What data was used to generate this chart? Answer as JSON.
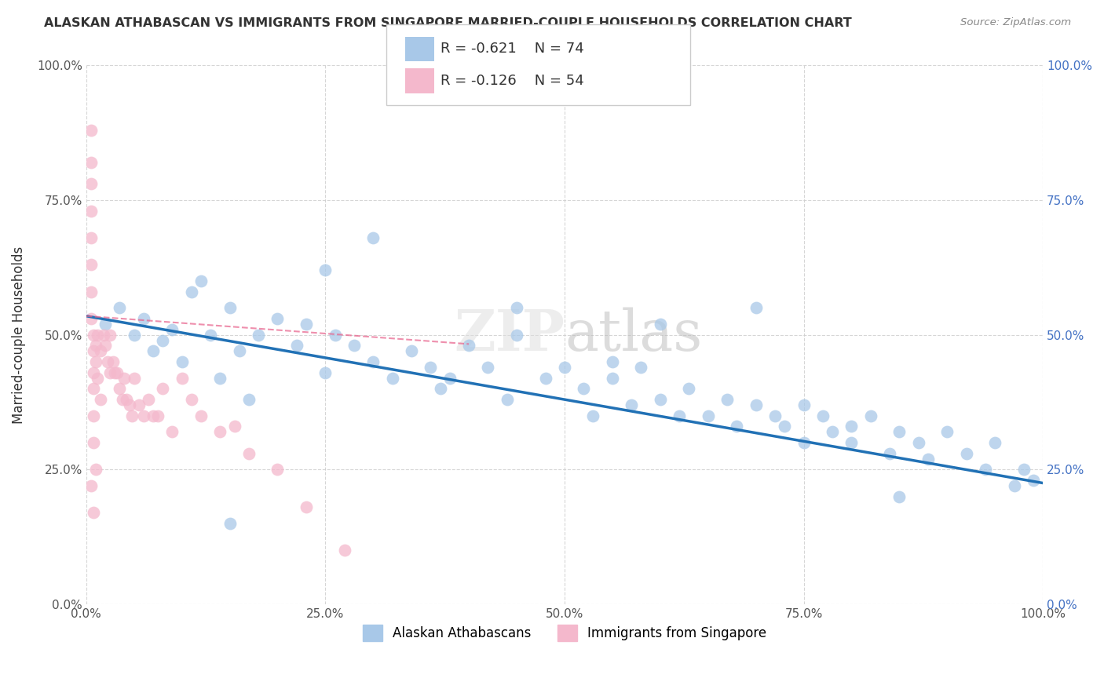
{
  "title": "ALASKAN ATHABASCAN VS IMMIGRANTS FROM SINGAPORE MARRIED-COUPLE HOUSEHOLDS CORRELATION CHART",
  "source": "Source: ZipAtlas.com",
  "ylabel": "Married-couple Households",
  "xlim": [
    0.0,
    1.0
  ],
  "ylim": [
    0.0,
    1.0
  ],
  "xticks": [
    0.0,
    0.25,
    0.5,
    0.75,
    1.0
  ],
  "yticks": [
    0.0,
    0.25,
    0.5,
    0.75,
    1.0
  ],
  "xticklabels": [
    "0.0%",
    "25.0%",
    "50.0%",
    "75.0%",
    "100.0%"
  ],
  "yticklabels": [
    "0.0%",
    "25.0%",
    "50.0%",
    "75.0%",
    "100.0%"
  ],
  "blue_color": "#a8c8e8",
  "pink_color": "#f4b8cc",
  "blue_line_color": "#2171b5",
  "pink_line_color": "#e8608a",
  "legend_text1": "R = -0.621    N = 74",
  "legend_text2": "R = -0.126    N = 54",
  "legend_label1": "Alaskan Athabascans",
  "legend_label2": "Immigrants from Singapore",
  "blue_scatter_x": [
    0.02,
    0.035,
    0.05,
    0.06,
    0.07,
    0.08,
    0.09,
    0.1,
    0.11,
    0.12,
    0.13,
    0.14,
    0.15,
    0.16,
    0.17,
    0.18,
    0.2,
    0.22,
    0.23,
    0.25,
    0.26,
    0.28,
    0.3,
    0.32,
    0.34,
    0.36,
    0.37,
    0.38,
    0.4,
    0.42,
    0.44,
    0.45,
    0.48,
    0.5,
    0.52,
    0.53,
    0.55,
    0.57,
    0.58,
    0.6,
    0.62,
    0.63,
    0.65,
    0.67,
    0.68,
    0.7,
    0.72,
    0.73,
    0.75,
    0.77,
    0.78,
    0.8,
    0.82,
    0.84,
    0.85,
    0.87,
    0.88,
    0.9,
    0.92,
    0.94,
    0.95,
    0.97,
    0.98,
    0.99,
    0.3,
    0.45,
    0.6,
    0.25,
    0.55,
    0.7,
    0.15,
    0.75,
    0.8,
    0.85
  ],
  "blue_scatter_y": [
    0.52,
    0.55,
    0.5,
    0.53,
    0.47,
    0.49,
    0.51,
    0.45,
    0.58,
    0.6,
    0.5,
    0.42,
    0.55,
    0.47,
    0.38,
    0.5,
    0.53,
    0.48,
    0.52,
    0.43,
    0.5,
    0.48,
    0.45,
    0.42,
    0.47,
    0.44,
    0.4,
    0.42,
    0.48,
    0.44,
    0.38,
    0.5,
    0.42,
    0.44,
    0.4,
    0.35,
    0.42,
    0.37,
    0.44,
    0.38,
    0.35,
    0.4,
    0.35,
    0.38,
    0.33,
    0.37,
    0.35,
    0.33,
    0.3,
    0.35,
    0.32,
    0.3,
    0.35,
    0.28,
    0.32,
    0.3,
    0.27,
    0.32,
    0.28,
    0.25,
    0.3,
    0.22,
    0.25,
    0.23,
    0.68,
    0.55,
    0.52,
    0.62,
    0.45,
    0.55,
    0.15,
    0.37,
    0.33,
    0.2
  ],
  "pink_scatter_x": [
    0.005,
    0.005,
    0.005,
    0.005,
    0.005,
    0.005,
    0.005,
    0.005,
    0.005,
    0.008,
    0.008,
    0.008,
    0.008,
    0.008,
    0.008,
    0.008,
    0.01,
    0.01,
    0.01,
    0.012,
    0.012,
    0.015,
    0.015,
    0.018,
    0.02,
    0.022,
    0.025,
    0.025,
    0.028,
    0.03,
    0.032,
    0.035,
    0.038,
    0.04,
    0.042,
    0.045,
    0.048,
    0.05,
    0.055,
    0.06,
    0.065,
    0.07,
    0.075,
    0.08,
    0.09,
    0.1,
    0.11,
    0.12,
    0.14,
    0.155,
    0.17,
    0.2,
    0.23,
    0.27
  ],
  "pink_scatter_y": [
    0.88,
    0.82,
    0.78,
    0.73,
    0.68,
    0.63,
    0.58,
    0.53,
    0.22,
    0.5,
    0.47,
    0.43,
    0.4,
    0.35,
    0.3,
    0.17,
    0.48,
    0.45,
    0.25,
    0.5,
    0.42,
    0.47,
    0.38,
    0.5,
    0.48,
    0.45,
    0.5,
    0.43,
    0.45,
    0.43,
    0.43,
    0.4,
    0.38,
    0.42,
    0.38,
    0.37,
    0.35,
    0.42,
    0.37,
    0.35,
    0.38,
    0.35,
    0.35,
    0.4,
    0.32,
    0.42,
    0.38,
    0.35,
    0.32,
    0.33,
    0.28,
    0.25,
    0.18,
    0.1
  ],
  "blue_trend_y_start": 0.535,
  "blue_trend_y_end": 0.225,
  "pink_trend_x_end": 0.4,
  "pink_trend_y_start": 0.535,
  "pink_trend_y_end": 0.483
}
